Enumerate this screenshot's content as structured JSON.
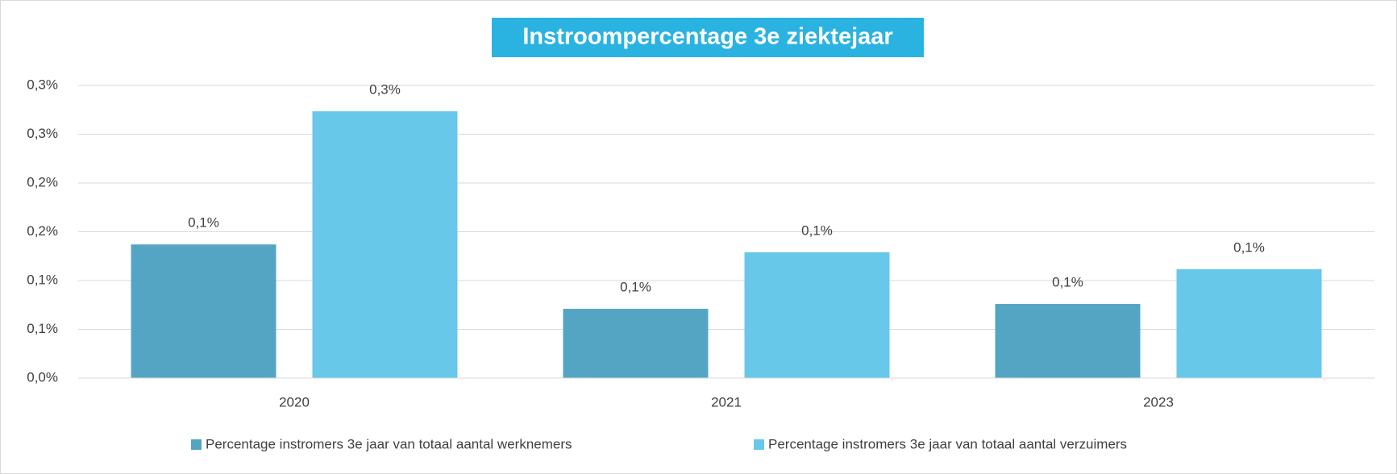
{
  "chart_data": {
    "type": "bar",
    "title": "Instroompercentage 3e ziektejaar",
    "categories": [
      "2020",
      "2021",
      "2023"
    ],
    "series": [
      {
        "name": "Percentage instromers 3e jaar van totaal aantal werknemers",
        "color": "#54a5c3",
        "values": [
          0.137,
          0.071,
          0.076
        ],
        "value_labels": [
          "0,1%",
          "0,1%",
          "0,1%"
        ]
      },
      {
        "name": "Percentage instromers 3e jaar van totaal aantal verzuimers",
        "color": "#68c8ea",
        "values": [
          0.2735,
          0.129,
          0.1116
        ],
        "value_labels": [
          "0,3%",
          "0,1%",
          "0,1%"
        ]
      }
    ],
    "ylim": [
      0,
      0.3
    ],
    "yticks": [
      {
        "value": 0,
        "label": "0,0%"
      },
      {
        "value": 0.05,
        "label": "0,1%"
      },
      {
        "value": 0.1,
        "label": "0,1%"
      },
      {
        "value": 0.15,
        "label": "0,2%"
      },
      {
        "value": 0.2,
        "label": "0,2%"
      },
      {
        "value": 0.25,
        "label": "0,3%"
      },
      {
        "value": 0.3,
        "label": "0,3%"
      }
    ],
    "grid": true,
    "legend": "bottom"
  }
}
